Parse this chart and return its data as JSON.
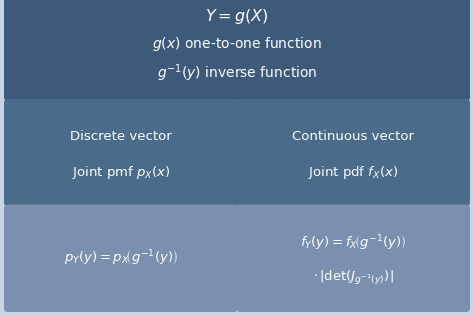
{
  "bg_color": "#c8d4e3",
  "top_box_color": "#3d5a7a",
  "mid_box_color": "#4a6b8a",
  "bot_left_box_color": "#7a90ae",
  "bot_right_box_color": "#7a90ae",
  "text_color": "#ffffff",
  "title_line1": "$Y = g(X)$",
  "title_line2": "$g(x)$ one-to-one function",
  "title_line3": "$g^{-1}(y)$ inverse function",
  "mid_left_line1": "Discrete vector",
  "mid_left_line2": "Joint pmf $p_X(x)$",
  "mid_right_line1": "Continuous vector",
  "mid_right_line2": "Joint pdf $f_X(x)$",
  "bot_left_line1": "$p_Y(y) = p_X\\!\\left(g^{-1}(y)\\right)$",
  "bot_right_line1": "$f_Y(y) = f_X\\!\\left(g^{-1}(y)\\right)$",
  "bot_right_line2": "$\\cdot\\,|\\mathrm{det}(J_{g^{-1}(y)})|$",
  "figw": 4.74,
  "figh": 3.16,
  "dpi": 100
}
